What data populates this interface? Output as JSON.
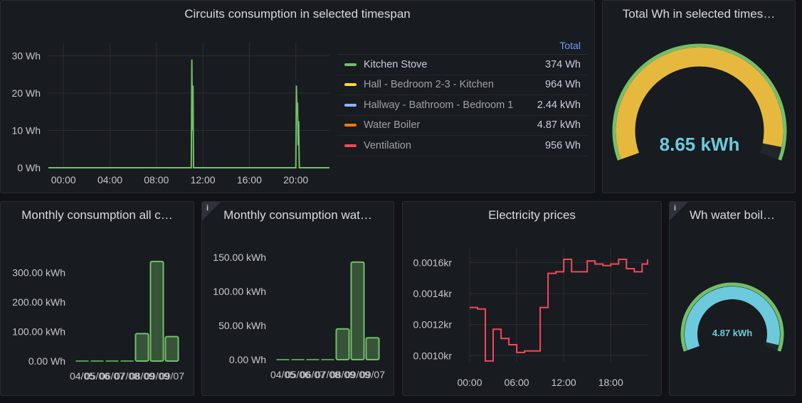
{
  "colors": {
    "kitchen_stove": "#73bf69",
    "hall": "#fade2a",
    "hallway": "#8ab8ff",
    "water_boiler": "#ff780a",
    "ventilation": "#f2495c",
    "gauge_fill": "#e6b93e",
    "gauge_threshold": "#73bf69",
    "gauge_text": "#6ccadc",
    "boiler_gauge": "#6ccadc"
  },
  "panels": {
    "circuits": {
      "title": "Circuits consumption in selected timespan",
      "legend": {
        "header": "Total",
        "items": [
          {
            "name": "Kitchen Stove",
            "value": "374 Wh",
            "icon": "legend-line-icon"
          },
          {
            "name": "Hall - Bedroom 2-3 - Kitchen",
            "value": "964 Wh",
            "icon": "legend-line-icon"
          },
          {
            "name": "Hallway - Bathroom - Bedroom 1",
            "value": "2.44 kWh",
            "icon": "legend-line-icon"
          },
          {
            "name": "Water Boiler",
            "value": "4.87 kWh",
            "icon": "legend-line-icon"
          },
          {
            "name": "Ventilation",
            "value": "956 Wh",
            "icon": "legend-line-icon"
          }
        ]
      }
    },
    "total": {
      "title": "Total Wh in selected times…",
      "value_label": "8.65 kWh",
      "fraction": 0.96
    },
    "monthly_all": {
      "title": "Monthly consumption all c…"
    },
    "monthly_water": {
      "title": "Monthly consumption wat…",
      "icon": "info-icon",
      "info": "i"
    },
    "prices": {
      "title": "Electricity prices"
    },
    "boiler": {
      "title": "Wh water boil…",
      "icon": "info-icon",
      "info": "i",
      "value_label": "4.87 kWh",
      "fraction": 0.97
    }
  },
  "chart_data": [
    {
      "type": "line",
      "title": "Circuits consumption in selected timespan",
      "x_ticks": [
        "00:00",
        "04:00",
        "08:00",
        "12:00",
        "16:00",
        "20:00"
      ],
      "y_ticks": [
        "0 Wh",
        "10 Wh",
        "20 Wh",
        "30 Wh"
      ],
      "ylim": [
        0,
        32
      ],
      "x_range_hours": [
        -1.3,
        22.9
      ],
      "series": [
        {
          "name": "Kitchen Stove",
          "points": [
            [
              -1.3,
              0
            ],
            [
              11.0,
              0
            ],
            [
              11.05,
              29
            ],
            [
              11.1,
              10
            ],
            [
              11.15,
              22
            ],
            [
              11.2,
              0
            ],
            [
              20.0,
              0
            ],
            [
              20.05,
              22
            ],
            [
              20.1,
              14
            ],
            [
              20.15,
              17.5
            ],
            [
              20.2,
              6
            ],
            [
              20.25,
              12.5
            ],
            [
              20.3,
              0
            ],
            [
              22.9,
              0
            ]
          ]
        }
      ],
      "grid": true
    },
    {
      "type": "bar",
      "title": "Monthly consumption all c…",
      "categories": [
        "04/05",
        "05/06",
        "06/07",
        "07/08",
        "08/09",
        "09/09",
        "09/07"
      ],
      "x_tick_labels": [
        "04/05",
        "05/06",
        "06/07",
        "07/08",
        "08/09",
        "09/09",
        "09/07"
      ],
      "values": [
        0,
        0,
        0,
        0,
        93,
        338,
        83
      ],
      "unit": "kWh",
      "y_ticks": [
        "0.00 Wh",
        "100.00 kWh",
        "200.00 kWh",
        "300.00 kWh"
      ],
      "ylim": [
        0,
        340
      ]
    },
    {
      "type": "bar",
      "title": "Monthly consumption wat…",
      "categories": [
        "04/05",
        "05/06",
        "06/07",
        "07/08",
        "08/09",
        "09/09",
        "09/07"
      ],
      "x_tick_labels": [
        "04/05",
        "05/06",
        "06/07",
        "07/08",
        "08/09",
        "09/09",
        "09/07"
      ],
      "values": [
        0,
        0,
        0,
        0,
        45,
        143,
        32
      ],
      "unit": "kWh",
      "y_ticks": [
        "0.00 Wh",
        "50.00 kWh",
        "100.00 kWh",
        "150.00 kWh"
      ],
      "ylim": [
        0,
        150
      ]
    },
    {
      "type": "line",
      "title": "Electricity prices",
      "x_ticks": [
        "00:00",
        "06:00",
        "12:00",
        "18:00"
      ],
      "y_ticks": [
        "0.0010kr",
        "0.0012kr",
        "0.0014kr",
        "0.0016kr"
      ],
      "ylim": [
        0.00096,
        0.00167
      ],
      "x_range_hours": [
        0,
        22.7
      ],
      "step": true,
      "points": [
        [
          0,
          0.00131
        ],
        [
          1,
          0.0013
        ],
        [
          2,
          0.000965
        ],
        [
          3,
          0.00117
        ],
        [
          4,
          0.00111
        ],
        [
          5,
          0.00107
        ],
        [
          6,
          0.00102
        ],
        [
          7,
          0.00103
        ],
        [
          8,
          0.00103
        ],
        [
          9,
          0.00131
        ],
        [
          10,
          0.00153
        ],
        [
          11,
          0.00154
        ],
        [
          12,
          0.00162
        ],
        [
          13,
          0.00154
        ],
        [
          14,
          0.00154
        ],
        [
          15,
          0.00161
        ],
        [
          16,
          0.00159
        ],
        [
          17,
          0.00158
        ],
        [
          18,
          0.00159
        ],
        [
          19,
          0.00162
        ],
        [
          20,
          0.00156
        ],
        [
          21,
          0.00154
        ],
        [
          22,
          0.00159
        ],
        [
          22.7,
          0.00162
        ]
      ],
      "color": "#f2495c"
    }
  ]
}
